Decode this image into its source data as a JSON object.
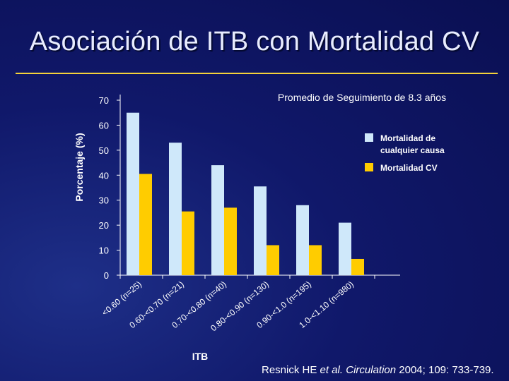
{
  "slide": {
    "title": "Asociación de ITB con Mortalidad CV",
    "citation": {
      "authors": "Resnick HE ",
      "etal": "et al.",
      "journal": "Circulation",
      "details": " 2004; 109: 733-739."
    }
  },
  "colors": {
    "background": "#10186a",
    "rule": "#f5d23a",
    "series_all_cause": "#cfe8fa",
    "series_cv": "#ffcc00"
  },
  "chart_data": {
    "type": "bar",
    "title": "",
    "annotation": "Promedio de Seguimiento de 8.3 años",
    "xlabel": "ITB",
    "ylabel": "Porcentaje (%)",
    "ylim": [
      0,
      70
    ],
    "yticks": [
      0,
      10,
      20,
      30,
      40,
      50,
      60,
      70
    ],
    "grid": false,
    "legend_position": "right",
    "categories": [
      "<0.60 (n=25)",
      "0.60-<0.70 (n=21)",
      "0.70-<0.80 (n=40)",
      "0.80-<0.90 (n=130)",
      "0.90-<1.0 (n=195)",
      "1.0-<1.10 (n=980)"
    ],
    "series": [
      {
        "name": "Mortalidad de cualquier causa",
        "legend_lines": [
          "Mortalidad de",
          "cualquier causa"
        ],
        "values": [
          65,
          53,
          44,
          35.5,
          28,
          21
        ]
      },
      {
        "name": "Mortalidad CV",
        "legend_lines": [
          "Mortalidad CV"
        ],
        "values": [
          40.5,
          25.5,
          27,
          12,
          12,
          6.5
        ]
      }
    ]
  }
}
